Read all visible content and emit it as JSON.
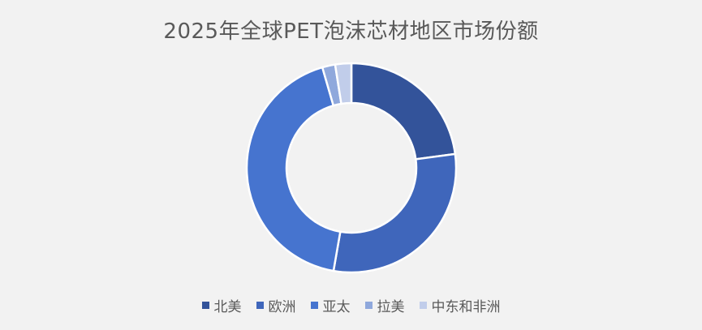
{
  "chart_data": {
    "type": "pie",
    "variant": "donut",
    "title": "2025年全球PET泡沫芯材地区市场份额",
    "categories": [
      "北美",
      "欧洲",
      "亚太",
      "拉美",
      "中东和非洲"
    ],
    "values": [
      23,
      30,
      43,
      2,
      2.5
    ],
    "unit": "%",
    "colors": [
      "#33539a",
      "#3f66bb",
      "#4674cf",
      "#8fa8dc",
      "#c1cdea"
    ],
    "legend_position": "bottom"
  }
}
